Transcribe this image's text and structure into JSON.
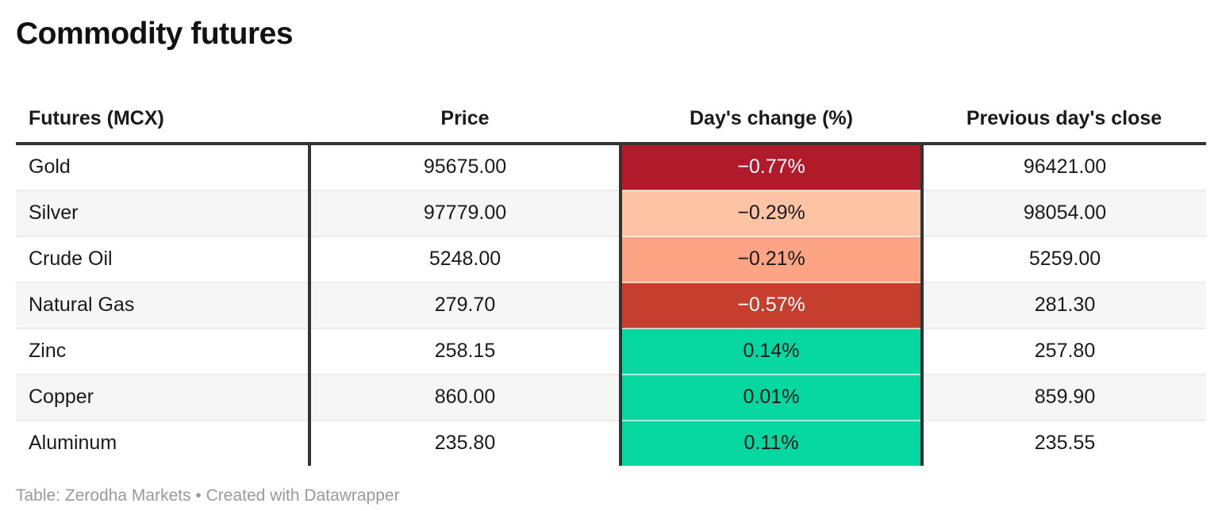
{
  "title": "Commodity futures",
  "footer": "Table: Zerodha Markets • Created with Datawrapper",
  "colors": {
    "heavy_border": "#333333",
    "row_separator": "#ebebeb",
    "zebra_stripe": "#f6f6f6",
    "negative_strong": "#b11a2b",
    "negative_medium": "#c63e2d",
    "negative_light_1": "#fcc4a4",
    "negative_light_2": "#fda485",
    "positive_green": "#06d6a0",
    "footer_text": "#9a9a9a"
  },
  "chart_data": {
    "type": "table",
    "title": "Commodity futures",
    "source": "Zerodha Markets",
    "tool": "Datawrapper",
    "columns": [
      "Futures (MCX)",
      "Price",
      "Day's change (%)",
      "Previous day's close"
    ],
    "rows": [
      {
        "name": "Gold",
        "price": "95675.00",
        "change": "−0.77%",
        "change_value": -0.77,
        "prev_close": "96421.00",
        "change_bg": "#b11a2b",
        "change_fg": "#ffffff"
      },
      {
        "name": "Silver",
        "price": "97779.00",
        "change": "−0.29%",
        "change_value": -0.29,
        "prev_close": "98054.00",
        "change_bg": "#fcc4a4",
        "change_fg": "#1a1a1a"
      },
      {
        "name": "Crude Oil",
        "price": "5248.00",
        "change": "−0.21%",
        "change_value": -0.21,
        "prev_close": "5259.00",
        "change_bg": "#fda485",
        "change_fg": "#1a1a1a"
      },
      {
        "name": "Natural Gas",
        "price": "279.70",
        "change": "−0.57%",
        "change_value": -0.57,
        "prev_close": "281.30",
        "change_bg": "#c63e2d",
        "change_fg": "#ffffff"
      },
      {
        "name": "Zinc",
        "price": "258.15",
        "change": "0.14%",
        "change_value": 0.14,
        "prev_close": "257.80",
        "change_bg": "#06d6a0",
        "change_fg": "#1a1a1a"
      },
      {
        "name": "Copper",
        "price": "860.00",
        "change": "0.01%",
        "change_value": 0.01,
        "prev_close": "859.90",
        "change_bg": "#06d6a0",
        "change_fg": "#1a1a1a"
      },
      {
        "name": "Aluminum",
        "price": "235.80",
        "change": "0.11%",
        "change_value": 0.11,
        "prev_close": "235.55",
        "change_bg": "#06d6a0",
        "change_fg": "#1a1a1a"
      }
    ]
  }
}
